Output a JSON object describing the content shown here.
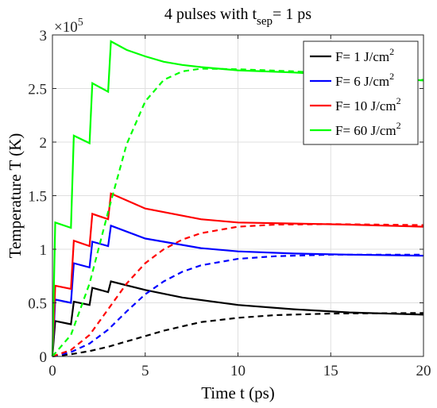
{
  "chart_data": {
    "type": "line",
    "title": "4 pulses with t",
    "title_subscript": "sep",
    "title_suffix": "= 1 ps",
    "xlabel": "Time t (ps)",
    "ylabel": "Temperature T (K)",
    "y_exponent_base": "×10",
    "y_exponent_power": "5",
    "xlim": [
      0,
      20
    ],
    "ylim": [
      0,
      3
    ],
    "xticks": [
      0,
      5,
      10,
      15,
      20
    ],
    "xtick_labels": [
      "0",
      "5",
      "10",
      "15",
      "20"
    ],
    "yticks": [
      0,
      0.5,
      1,
      1.5,
      2,
      2.5,
      3
    ],
    "ytick_labels": [
      "0",
      "0.5",
      "1",
      "1.5",
      "2",
      "2.5",
      "3"
    ],
    "grid": true,
    "legend_position": "top-right",
    "series": [
      {
        "label_prefix": "F= 1 J/cm",
        "label_sup": "2",
        "color": "#000000",
        "solid": [
          [
            0,
            0
          ],
          [
            0.15,
            0.33
          ],
          [
            1,
            0.3
          ],
          [
            1.15,
            0.51
          ],
          [
            2,
            0.48
          ],
          [
            2.15,
            0.64
          ],
          [
            3,
            0.6
          ],
          [
            3.15,
            0.7
          ],
          [
            5,
            0.62
          ],
          [
            7,
            0.55
          ],
          [
            10,
            0.48
          ],
          [
            13,
            0.44
          ],
          [
            16,
            0.41
          ],
          [
            20,
            0.39
          ]
        ],
        "dashed": [
          [
            0,
            0
          ],
          [
            1,
            0.02
          ],
          [
            2,
            0.05
          ],
          [
            3,
            0.09
          ],
          [
            4,
            0.14
          ],
          [
            5,
            0.19
          ],
          [
            6,
            0.24
          ],
          [
            7,
            0.28
          ],
          [
            8,
            0.32
          ],
          [
            10,
            0.36
          ],
          [
            12,
            0.385
          ],
          [
            15,
            0.4
          ],
          [
            20,
            0.405
          ]
        ]
      },
      {
        "label_prefix": "F= 6 J/cm",
        "label_sup": "2",
        "color": "#0000ff",
        "solid": [
          [
            0,
            0
          ],
          [
            0.15,
            0.53
          ],
          [
            1,
            0.5
          ],
          [
            1.15,
            0.87
          ],
          [
            2,
            0.83
          ],
          [
            2.15,
            1.07
          ],
          [
            3,
            1.03
          ],
          [
            3.15,
            1.22
          ],
          [
            5,
            1.1
          ],
          [
            8,
            1.01
          ],
          [
            10,
            0.98
          ],
          [
            13,
            0.96
          ],
          [
            16,
            0.95
          ],
          [
            20,
            0.94
          ]
        ],
        "dashed": [
          [
            0,
            0
          ],
          [
            1,
            0.04
          ],
          [
            2,
            0.12
          ],
          [
            3,
            0.25
          ],
          [
            4,
            0.42
          ],
          [
            5,
            0.58
          ],
          [
            6,
            0.7
          ],
          [
            7,
            0.79
          ],
          [
            8,
            0.85
          ],
          [
            10,
            0.91
          ],
          [
            12,
            0.935
          ],
          [
            15,
            0.95
          ],
          [
            20,
            0.95
          ]
        ]
      },
      {
        "label_prefix": "F= 10 J/cm",
        "label_sup": "2",
        "color": "#ff0000",
        "solid": [
          [
            0,
            0
          ],
          [
            0.15,
            0.66
          ],
          [
            1,
            0.63
          ],
          [
            1.15,
            1.08
          ],
          [
            2,
            1.03
          ],
          [
            2.15,
            1.33
          ],
          [
            3,
            1.28
          ],
          [
            3.15,
            1.52
          ],
          [
            5,
            1.38
          ],
          [
            8,
            1.28
          ],
          [
            10,
            1.25
          ],
          [
            13,
            1.24
          ],
          [
            16,
            1.23
          ],
          [
            20,
            1.21
          ]
        ],
        "dashed": [
          [
            0,
            0
          ],
          [
            1,
            0.06
          ],
          [
            2,
            0.2
          ],
          [
            3,
            0.44
          ],
          [
            4,
            0.68
          ],
          [
            5,
            0.87
          ],
          [
            6,
            1.0
          ],
          [
            7,
            1.09
          ],
          [
            8,
            1.15
          ],
          [
            10,
            1.21
          ],
          [
            12,
            1.23
          ],
          [
            15,
            1.235
          ],
          [
            20,
            1.225
          ]
        ]
      },
      {
        "label_prefix": "F= 60 J/cm",
        "label_sup": "2",
        "color": "#00ff00",
        "solid": [
          [
            0,
            0
          ],
          [
            0.15,
            1.25
          ],
          [
            1,
            1.2
          ],
          [
            1.15,
            2.06
          ],
          [
            2,
            1.99
          ],
          [
            2.15,
            2.55
          ],
          [
            3,
            2.47
          ],
          [
            3.15,
            2.94
          ],
          [
            4,
            2.86
          ],
          [
            5,
            2.8
          ],
          [
            6,
            2.75
          ],
          [
            7,
            2.72
          ],
          [
            8,
            2.7
          ],
          [
            10,
            2.67
          ],
          [
            13,
            2.65
          ],
          [
            16,
            2.62
          ],
          [
            20,
            2.575
          ]
        ],
        "dashed": [
          [
            0,
            0
          ],
          [
            1,
            0.2
          ],
          [
            2,
            0.68
          ],
          [
            3,
            1.35
          ],
          [
            4,
            1.98
          ],
          [
            5,
            2.38
          ],
          [
            6,
            2.58
          ],
          [
            7,
            2.66
          ],
          [
            8,
            2.685
          ],
          [
            10,
            2.68
          ],
          [
            13,
            2.66
          ],
          [
            16,
            2.63
          ],
          [
            20,
            2.58
          ]
        ]
      }
    ]
  }
}
